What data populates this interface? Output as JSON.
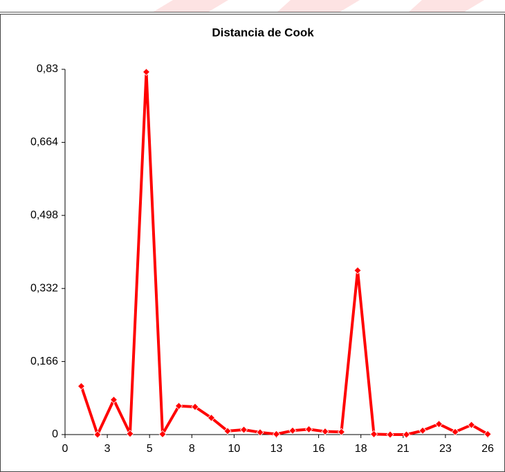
{
  "chart_data": {
    "type": "line",
    "title": "Distancia de Cook",
    "x": [
      1,
      2,
      3,
      4,
      5,
      6,
      7,
      8,
      9,
      10,
      11,
      12,
      13,
      14,
      15,
      16,
      17,
      18,
      19,
      20,
      21,
      22,
      23,
      24,
      25,
      26
    ],
    "series": [
      {
        "color": "#ff0000",
        "values": [
          0.11,
          0,
          0.079,
          0.002,
          0.824,
          0.001,
          0.065,
          0.063,
          0.038,
          0.008,
          0.011,
          0.005,
          0.001,
          0.009,
          0.012,
          0.007,
          0.006,
          0.373,
          0.001,
          0,
          0,
          0.009,
          0.024,
          0.006,
          0.022,
          0.001
        ]
      }
    ],
    "xlim": [
      0,
      26
    ],
    "xticks": [
      0,
      {
        "value": 2.6,
        "label": "3"
      },
      {
        "value": 5.2,
        "label": "5"
      },
      {
        "value": 7.8,
        "label": "8"
      },
      {
        "value": 10.4,
        "label": "10"
      },
      13,
      {
        "value": 15.6,
        "label": "16"
      },
      {
        "value": 18.2,
        "label": "18"
      },
      {
        "value": 20.8,
        "label": "21"
      },
      {
        "value": 23.4,
        "label": "23"
      },
      26
    ],
    "ylim": [
      0,
      0.83
    ],
    "yticks": [
      0,
      {
        "value": 0.166,
        "label": "0,166"
      },
      {
        "value": 0.332,
        "label": "0,332"
      },
      {
        "value": 0.498,
        "label": "0,498"
      },
      {
        "value": 0.664,
        "label": "0,664"
      },
      {
        "value": 0.83,
        "label": "0,83"
      }
    ],
    "grid": false,
    "marker": "diamond"
  }
}
